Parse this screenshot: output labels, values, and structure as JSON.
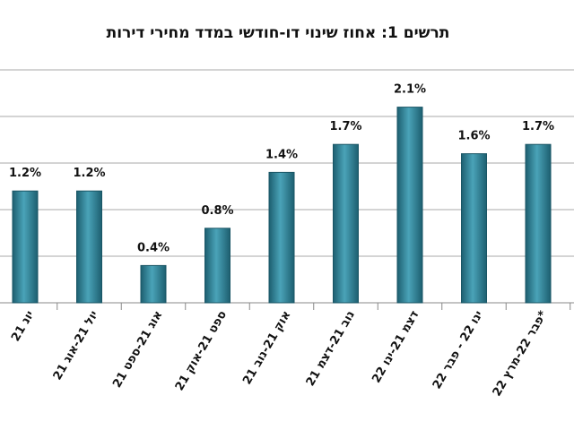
{
  "chart_data": {
    "type": "bar",
    "title": "תרשים 1: אחוז שינוי דו-חודשי במדד מחירי דירות",
    "categories": [
      "יונ 21",
      "יול 21-אוג 21",
      "אוג 21-ספט 21",
      "ספט 21-אוק 21",
      "אוק 21-נוב 21",
      "נוב 21-דצמ 21",
      "דצמ 21-ינו 22",
      "ינו 22 - פבר 22",
      "פבר 22-מרץ 22*"
    ],
    "values": [
      1.2,
      1.2,
      0.4,
      0.8,
      1.4,
      1.7,
      2.1,
      1.6,
      1.7
    ],
    "value_labels": [
      "1.2%",
      "1.2%",
      "0.4%",
      "0.8%",
      "1.4%",
      "1.7%",
      "2.1%",
      "1.6%",
      "1.7%"
    ],
    "color": "#2a8197",
    "ylim": [
      0,
      2.5
    ],
    "yticks": [
      0,
      0.5,
      1,
      1.5,
      2,
      2.5
    ],
    "grid": true
  }
}
